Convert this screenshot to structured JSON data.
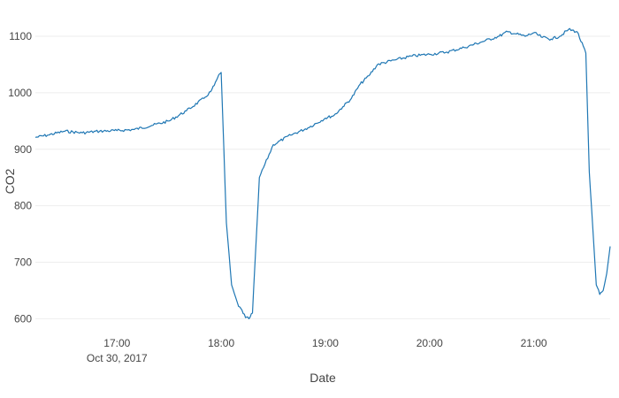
{
  "chart_data": {
    "type": "line",
    "title": "",
    "xlabel": "Date",
    "ylabel": "CO2",
    "x_format": "HH:MM",
    "xlim": [
      "2017-10-30 16:13",
      "2017-10-30 21:44"
    ],
    "ylim": [
      585,
      1125
    ],
    "grid": true,
    "legend": "none",
    "colors": {
      "line": "#1f77b4",
      "grid": "#eeeeee",
      "text": "#444444"
    },
    "y_ticks": [
      600,
      700,
      800,
      900,
      1000,
      1100
    ],
    "x_ticks": [
      {
        "x": "2017-10-30 17:00",
        "label": "17:00",
        "sublabel": "Oct 30, 2017"
      },
      {
        "x": "2017-10-30 18:00",
        "label": "18:00",
        "sublabel": ""
      },
      {
        "x": "2017-10-30 19:00",
        "label": "19:00",
        "sublabel": ""
      },
      {
        "x": "2017-10-30 20:00",
        "label": "20:00",
        "sublabel": ""
      },
      {
        "x": "2017-10-30 21:00",
        "label": "21:00",
        "sublabel": ""
      }
    ],
    "series": [
      {
        "name": "",
        "x": [
          "2017-10-30 16:13",
          "2017-10-30 16:20",
          "2017-10-30 16:30",
          "2017-10-30 16:40",
          "2017-10-30 16:50",
          "2017-10-30 17:00",
          "2017-10-30 17:10",
          "2017-10-30 17:20",
          "2017-10-30 17:30",
          "2017-10-30 17:40",
          "2017-10-30 17:50",
          "2017-10-30 17:54",
          "2017-10-30 17:56",
          "2017-10-30 17:58",
          "2017-10-30 18:00",
          "2017-10-30 18:03",
          "2017-10-30 18:06",
          "2017-10-30 18:10",
          "2017-10-30 18:12",
          "2017-10-30 18:14",
          "2017-10-30 18:16",
          "2017-10-30 18:18",
          "2017-10-30 18:22",
          "2017-10-30 18:30",
          "2017-10-30 18:40",
          "2017-10-30 18:50",
          "2017-10-30 19:00",
          "2017-10-30 19:05",
          "2017-10-30 19:10",
          "2017-10-30 19:15",
          "2017-10-30 19:20",
          "2017-10-30 19:25",
          "2017-10-30 19:30",
          "2017-10-30 19:40",
          "2017-10-30 19:50",
          "2017-10-30 20:00",
          "2017-10-30 20:10",
          "2017-10-30 20:20",
          "2017-10-30 20:30",
          "2017-10-30 20:40",
          "2017-10-30 20:45",
          "2017-10-30 20:50",
          "2017-10-30 20:55",
          "2017-10-30 21:00",
          "2017-10-30 21:05",
          "2017-10-30 21:10",
          "2017-10-30 21:15",
          "2017-10-30 21:20",
          "2017-10-30 21:25",
          "2017-10-30 21:30",
          "2017-10-30 21:32",
          "2017-10-30 21:34",
          "2017-10-30 21:36",
          "2017-10-30 21:38",
          "2017-10-30 21:40",
          "2017-10-30 21:42",
          "2017-10-30 21:44"
        ],
        "y": [
          921,
          925,
          932,
          929,
          932,
          933,
          935,
          942,
          950,
          968,
          990,
          1002,
          1013,
          1027,
          1036,
          770,
          660,
          622,
          615,
          602,
          600,
          610,
          850,
          908,
          925,
          938,
          955,
          960,
          975,
          990,
          1015,
          1030,
          1050,
          1058,
          1065,
          1068,
          1072,
          1080,
          1090,
          1100,
          1108,
          1104,
          1100,
          1106,
          1098,
          1095,
          1100,
          1112,
          1108,
          1070,
          860,
          760,
          660,
          643,
          650,
          680,
          728
        ]
      }
    ]
  }
}
